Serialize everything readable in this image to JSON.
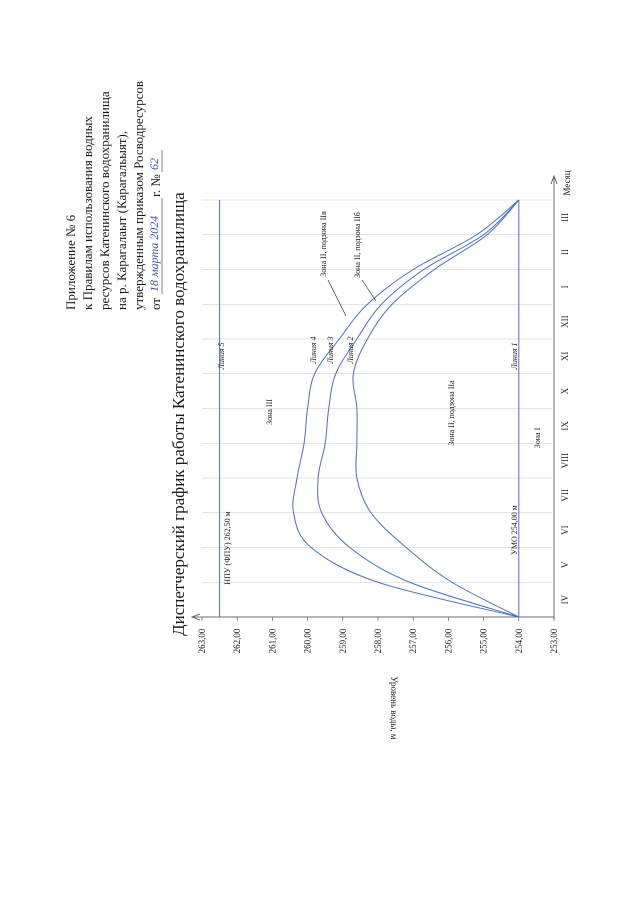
{
  "header": {
    "line1": "Приложение № 6",
    "line2": "к Правилам использования водных",
    "line3": "ресурсов Катенинского водохранилища",
    "line4": "на р. Карагалаыт (Карагальыят),",
    "line5_prefix": "утвержденным приказом Росводресурсов",
    "date_prefix": "от",
    "date_handwritten": "18 марта 2024",
    "date_suffix": "г. №",
    "order_number_handwritten": "62"
  },
  "colors": {
    "line": "#4a6fc0",
    "axis": "#444444",
    "grid": "#c8c8c8",
    "text": "#1a1a1a",
    "ink": "#3d52b8"
  },
  "chart_data": {
    "type": "line",
    "title": "Диспетчерский график работы Катенинского водохранилища",
    "xlabel": "Месяц",
    "ylabel": "Уровень воды, м",
    "ylim": [
      253,
      263
    ],
    "x_ticks": [
      "IV",
      "V",
      "VI",
      "VII",
      "VIII",
      "IX",
      "X",
      "XI",
      "XII",
      "I",
      "II",
      "III"
    ],
    "x_range": [
      0,
      12
    ],
    "y_ticks": [
      "253,00",
      "254,00",
      "255,00",
      "256,00",
      "257,00",
      "258,00",
      "259,00",
      "260,00",
      "261,00",
      "262,00",
      "263,00"
    ],
    "grid": "vertical",
    "series": [
      {
        "name": "Линия 5",
        "x": [
          0,
          12
        ],
        "values": [
          262.5,
          262.5
        ]
      },
      {
        "name": "Линия 1",
        "x": [
          0,
          12
        ],
        "values": [
          254.0,
          254.0
        ]
      },
      {
        "name": "Линия 4",
        "x": [
          0,
          1,
          2,
          3,
          4,
          5,
          6,
          7,
          8,
          9,
          10,
          11,
          12
        ],
        "values": [
          254.0,
          258.0,
          259.9,
          260.4,
          260.3,
          260.1,
          260.0,
          259.8,
          259.1,
          258.3,
          257.0,
          255.2,
          254.0
        ]
      },
      {
        "name": "Линия 3",
        "x": [
          0,
          1,
          2,
          3,
          4,
          5,
          6,
          7,
          8,
          9,
          10,
          11,
          12
        ],
        "values": [
          254.0,
          257.1,
          258.8,
          259.6,
          259.7,
          259.5,
          259.4,
          259.2,
          258.6,
          257.9,
          256.7,
          255.0,
          254.0
        ]
      },
      {
        "name": "Линия 2",
        "x": [
          0,
          1,
          2,
          3,
          4,
          5,
          6,
          7,
          8,
          9,
          10,
          11,
          12
        ],
        "values": [
          254.0,
          255.9,
          257.2,
          258.2,
          258.6,
          258.6,
          258.6,
          258.7,
          258.3,
          257.6,
          256.4,
          254.9,
          254.0
        ]
      }
    ],
    "annotations": {
      "npu": "НПУ (ФПУ) 262,50 м",
      "umo": "УМО 254,00 м",
      "zone3": "Зона III",
      "zone1": "Зона I",
      "zone2a": "Зона II, подзона IIа",
      "zone2b": "Зона II, подзона IIб",
      "zone2v": "Зона II, подзона IIв"
    }
  }
}
